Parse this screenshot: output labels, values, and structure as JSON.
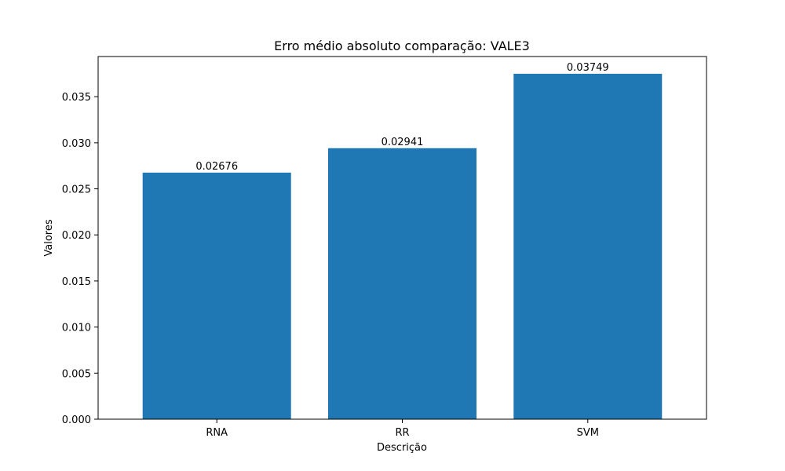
{
  "chart_data": {
    "type": "bar",
    "title": "Erro médio absoluto comparação: VALE3",
    "xlabel": "Descrição",
    "ylabel": "Valores",
    "categories": [
      "RNA",
      "RR",
      "SVM"
    ],
    "values": [
      0.02676,
      0.02941,
      0.03749
    ],
    "data_labels": [
      "0.02676",
      "0.02941",
      "0.03749"
    ],
    "ylim": [
      0,
      0.03936
    ],
    "yticks": [
      0.0,
      0.005,
      0.01,
      0.015,
      0.02,
      0.025,
      0.03,
      0.035
    ],
    "ytick_labels": [
      "0.000",
      "0.005",
      "0.010",
      "0.015",
      "0.020",
      "0.025",
      "0.030",
      "0.035"
    ],
    "grid": false,
    "colors": {
      "bar": "#1f77b4",
      "axis": "#000000",
      "background": "#ffffff"
    }
  }
}
